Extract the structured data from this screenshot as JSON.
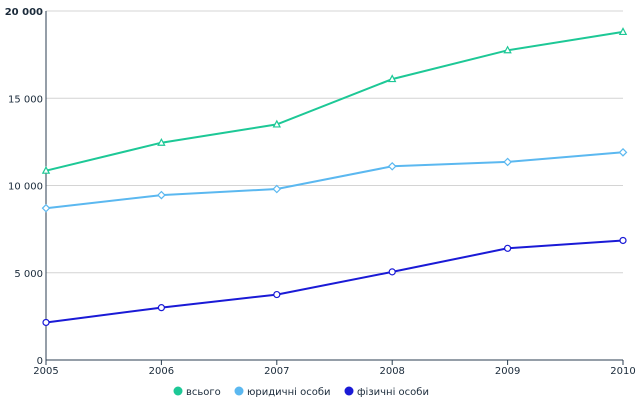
{
  "chart_data": {
    "type": "line",
    "title": "",
    "xlabel": "",
    "ylabel": "",
    "x": [
      "2005",
      "2006",
      "2007",
      "2008",
      "2009",
      "2010"
    ],
    "ylim": [
      0,
      20000
    ],
    "y_ticks": [
      {
        "value": 0,
        "label": "0"
      },
      {
        "value": 5000,
        "label": "5 000"
      },
      {
        "value": 10000,
        "label": "10 000"
      },
      {
        "value": 15000,
        "label": "15 000"
      },
      {
        "value": 20000,
        "label": "20 000"
      }
    ],
    "grid": "horizontal",
    "legend_position": "bottom",
    "series": [
      {
        "name": "всього",
        "color": "#1dc896",
        "marker": "triangle",
        "values": [
          10850,
          12450,
          13500,
          16100,
          17750,
          18800
        ]
      },
      {
        "name": "юридичні особи",
        "color": "#5bb8f0",
        "marker": "diamond",
        "values": [
          8700,
          9450,
          9800,
          11100,
          11350,
          11900
        ]
      },
      {
        "name": "фізичні особи",
        "color": "#1a1ad6",
        "marker": "circle",
        "values": [
          2150,
          3000,
          3750,
          5050,
          6400,
          6850
        ]
      }
    ]
  }
}
